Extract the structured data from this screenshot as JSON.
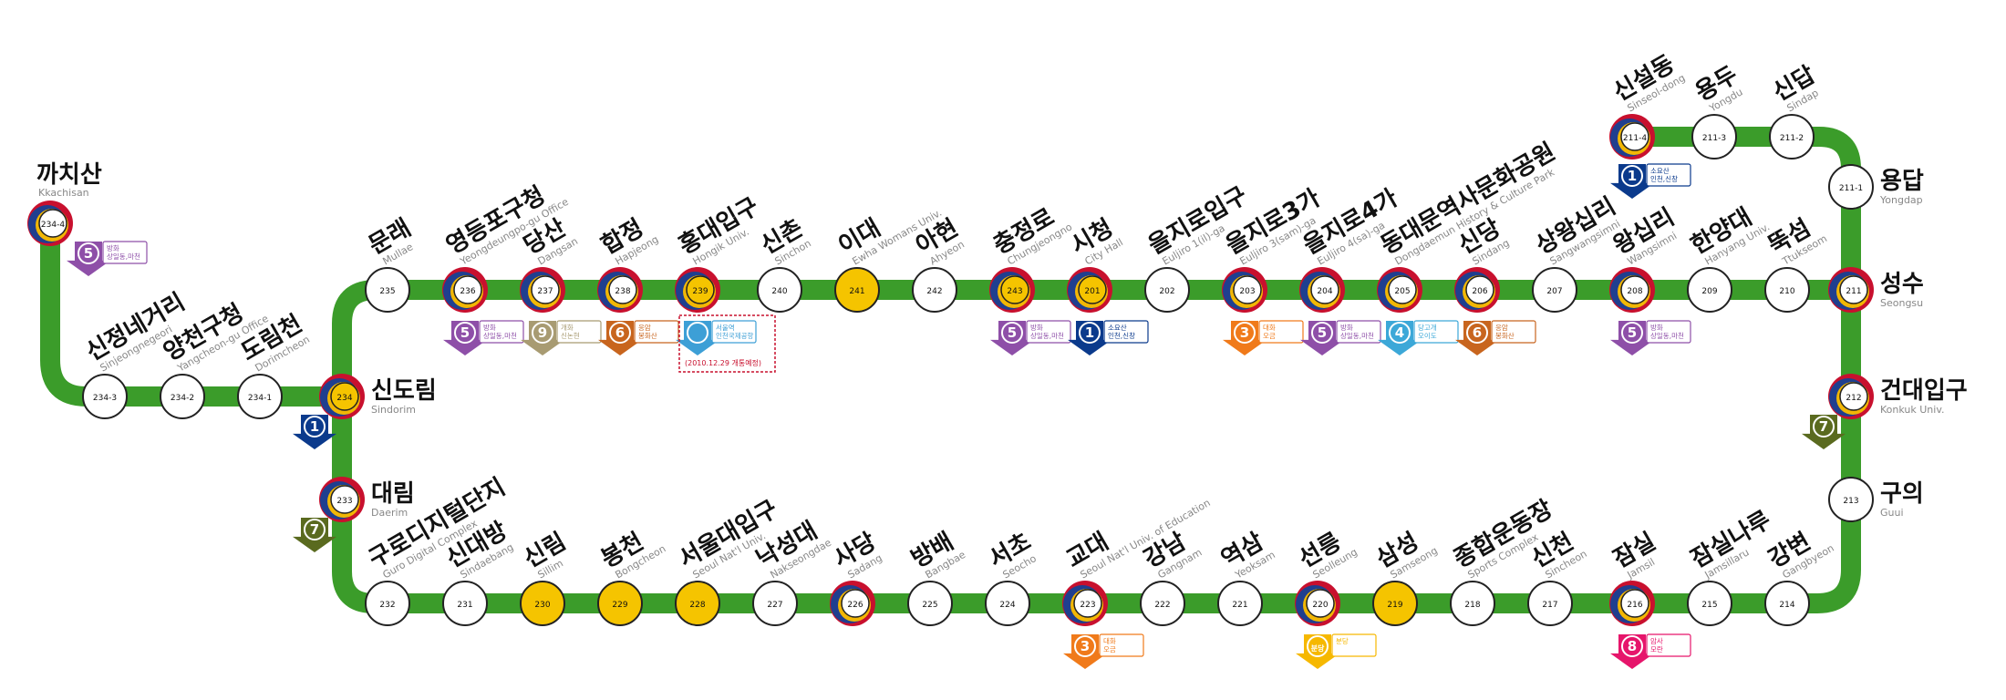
{
  "line": {
    "color": "#3b9c2a",
    "transfer_ring_colors": [
      "#c8102e",
      "#1f3f8f",
      "#f2b705"
    ]
  },
  "stations": [
    {
      "id": "234-4",
      "kor": "까치산",
      "eng": "Kkachisan",
      "transfer": true
    },
    {
      "id": "234-3",
      "kor": "신정네거리",
      "eng": "Sinjeongnegeori"
    },
    {
      "id": "234-2",
      "kor": "양천구청",
      "eng": "Yangcheon-gu Office"
    },
    {
      "id": "234-1",
      "kor": "도림천",
      "eng": "Dorimcheon"
    },
    {
      "id": "234",
      "kor": "신도림",
      "eng": "Sindorim",
      "transfer": true,
      "yellow": true
    },
    {
      "id": "233",
      "kor": "대림",
      "eng": "Daerim",
      "transfer": true
    },
    {
      "id": "232",
      "kor": "구로디지털단지",
      "eng": "Guro Digital Complex"
    },
    {
      "id": "231",
      "kor": "신대방",
      "eng": "Sindaebang"
    },
    {
      "id": "230",
      "kor": "신림",
      "eng": "Sillim",
      "yellow": true
    },
    {
      "id": "229",
      "kor": "봉천",
      "eng": "Bongcheon",
      "yellow": true
    },
    {
      "id": "228",
      "kor": "서울대입구",
      "eng": "Seoul Nat'l Univ.",
      "yellow": true
    },
    {
      "id": "227",
      "kor": "낙성대",
      "eng": "Nakseongdae"
    },
    {
      "id": "226",
      "kor": "사당",
      "eng": "Sadang",
      "transfer": true
    },
    {
      "id": "225",
      "kor": "방배",
      "eng": "Bangbae"
    },
    {
      "id": "224",
      "kor": "서초",
      "eng": "Seocho"
    },
    {
      "id": "223",
      "kor": "교대",
      "eng": "Seoul Nat'l Univ. of Education",
      "transfer": true
    },
    {
      "id": "222",
      "kor": "강남",
      "eng": "Gangnam"
    },
    {
      "id": "221",
      "kor": "역삼",
      "eng": "Yeoksam"
    },
    {
      "id": "220",
      "kor": "선릉",
      "eng": "Seolleung",
      "transfer": true
    },
    {
      "id": "219",
      "kor": "삼성",
      "eng": "Samseong",
      "yellow": true
    },
    {
      "id": "218",
      "kor": "종합운동장",
      "eng": "Sports Complex"
    },
    {
      "id": "217",
      "kor": "신천",
      "eng": "Sincheon"
    },
    {
      "id": "216",
      "kor": "잠실",
      "eng": "Jamsil",
      "transfer": true
    },
    {
      "id": "215",
      "kor": "잠실나루",
      "eng": "Jamsillaru"
    },
    {
      "id": "214",
      "kor": "강변",
      "eng": "Gangbyeon"
    },
    {
      "id": "213",
      "kor": "구의",
      "eng": "Guui"
    },
    {
      "id": "212",
      "kor": "건대입구",
      "eng": "Konkuk Univ.",
      "transfer": true
    },
    {
      "id": "211",
      "kor": "성수",
      "eng": "Seongsu",
      "transfer": true
    },
    {
      "id": "211-1",
      "kor": "용답",
      "eng": "Yongdap"
    },
    {
      "id": "211-2",
      "kor": "신답",
      "eng": "Sindap"
    },
    {
      "id": "211-3",
      "kor": "용두",
      "eng": "Yongdu"
    },
    {
      "id": "211-4",
      "kor": "신설동",
      "eng": "Sinseol-dong",
      "transfer": true
    },
    {
      "id": "208",
      "kor": "왕십리",
      "eng": "Wangsimni",
      "transfer": true
    },
    {
      "id": "209",
      "kor": "한양대",
      "eng": "Hanyang Univ."
    },
    {
      "id": "210",
      "kor": "뚝섬",
      "eng": "Ttukseom"
    },
    {
      "id": "207",
      "kor": "상왕십리",
      "eng": "Sangwangsimni"
    },
    {
      "id": "206",
      "kor": "신당",
      "eng": "Sindang",
      "transfer": true
    },
    {
      "id": "205",
      "kor": "동대문역사문화공원",
      "eng": "Dongdaemun History & Culture Park",
      "transfer": true
    },
    {
      "id": "204",
      "kor": "을지로4가",
      "eng": "Euljiro 4(sa)-ga",
      "transfer": true
    },
    {
      "id": "203",
      "kor": "을지로3가",
      "eng": "Euljiro 3(sam)-ga",
      "transfer": true
    },
    {
      "id": "202",
      "kor": "을지로입구",
      "eng": "Euljiro 1(il)-ga"
    },
    {
      "id": "201",
      "kor": "시청",
      "eng": "City Hall",
      "transfer": true,
      "yellow": true
    },
    {
      "id": "243",
      "kor": "충정로",
      "eng": "Chungjeongno",
      "transfer": true,
      "yellow": true
    },
    {
      "id": "242",
      "kor": "아현",
      "eng": "Ahyeon"
    },
    {
      "id": "241",
      "kor": "이대",
      "eng": "Ewha Womans Univ.",
      "yellow": true
    },
    {
      "id": "240",
      "kor": "신촌",
      "eng": "Sinchon"
    },
    {
      "id": "239",
      "kor": "홍대입구",
      "eng": "Hongik Univ.",
      "transfer": true,
      "yellow": true
    },
    {
      "id": "238",
      "kor": "합정",
      "eng": "Hapjeong",
      "transfer": true
    },
    {
      "id": "237",
      "kor": "당산",
      "eng": "Dangsan",
      "transfer": true
    },
    {
      "id": "236",
      "kor": "영등포구청",
      "eng": "Yeongdeungpo-gu Office",
      "transfer": true
    },
    {
      "id": "235",
      "kor": "문래",
      "eng": "Mullae"
    }
  ],
  "transfers": [
    {
      "at": "234-4",
      "line": "5",
      "label": "방화\n상일동,마천",
      "color": "#8e4fa8"
    },
    {
      "at": "234",
      "line": "1",
      "label": "",
      "color": "#0b3a8c"
    },
    {
      "at": "233",
      "line": "7",
      "label": "",
      "color": "#5a6a1f"
    },
    {
      "at": "236",
      "line": "5",
      "label": "방화\n상일동,마천",
      "color": "#8e4fa8"
    },
    {
      "at": "237",
      "line": "9",
      "label": "개화\n신논현",
      "color": "#a89b72"
    },
    {
      "at": "238",
      "line": "6",
      "label": "응암\n봉화산",
      "color": "#c8651e"
    },
    {
      "at": "239",
      "line": "",
      "label": "서울역\n인천국제공항",
      "color": "#3d9fd6"
    },
    {
      "at": "243",
      "line": "5",
      "label": "방화\n상일동,마천",
      "color": "#8e4fa8"
    },
    {
      "at": "201",
      "line": "1",
      "label": "소요산\n인천,신창",
      "color": "#0b3a8c"
    },
    {
      "at": "203",
      "line": "3",
      "label": "대화\n오금",
      "color": "#f07a1a"
    },
    {
      "at": "204",
      "line": "5",
      "label": "방화\n상일동,마천",
      "color": "#8e4fa8"
    },
    {
      "at": "205",
      "line": "4",
      "label": "당고개\n오이도",
      "color": "#3ca8d8"
    },
    {
      "at": "206",
      "line": "6",
      "label": "응암\n봉화산",
      "color": "#c8651e"
    },
    {
      "at": "208",
      "line": "5",
      "label": "방화\n상일동,마천",
      "color": "#8e4fa8"
    },
    {
      "at": "211-4",
      "line": "1",
      "label": "소요산\n인천,신창",
      "color": "#0b3a8c"
    },
    {
      "at": "212",
      "line": "7",
      "label": "",
      "color": "#5a6a1f"
    },
    {
      "at": "223",
      "line": "3",
      "label": "대화\n오금",
      "color": "#f07a1a"
    },
    {
      "at": "220",
      "line": "분당",
      "label": "분당",
      "color": "#f6b800"
    },
    {
      "at": "216",
      "line": "8",
      "label": "암사\n모란",
      "color": "#e6156b"
    }
  ],
  "notes": {
    "hongik_opening": "(2010.12.29 개통예정)"
  }
}
